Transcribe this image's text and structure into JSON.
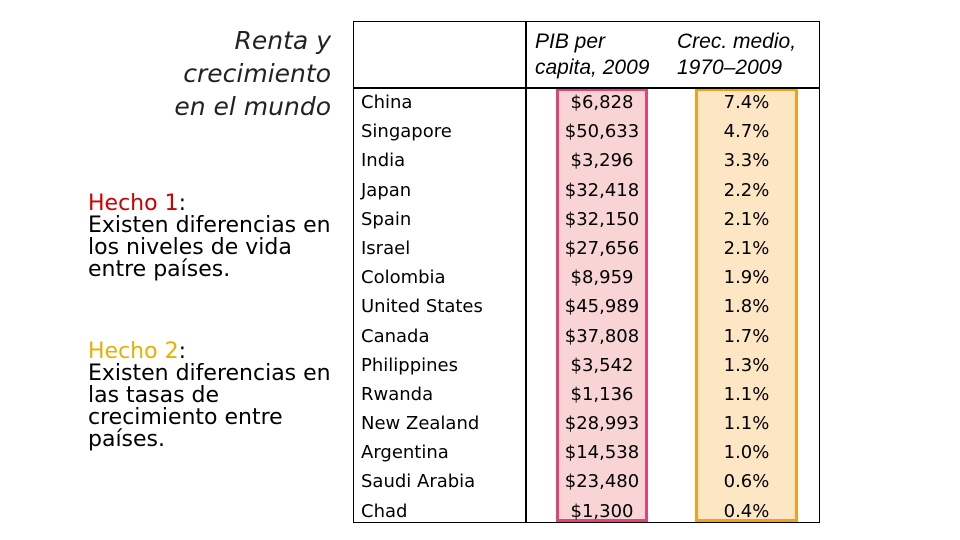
{
  "title": {
    "line1": "Renta y",
    "line2": "crecimiento",
    "line3": "en el mundo"
  },
  "fact1": {
    "label": "Hecho 1",
    "colon": ":",
    "text": "Existen diferencias en los niveles de vida entre países."
  },
  "fact2": {
    "label": "Hecho 2",
    "colon": ":",
    "text": "Existen diferencias en las tasas de crecimiento entre países."
  },
  "table": {
    "headers": {
      "gdp_line1": "PIB per",
      "gdp_line2": "capita, 2009",
      "growth_line1": "Crec. medio,",
      "growth_line2": "1970–2009"
    },
    "rows": [
      {
        "country": "China",
        "gdp": "$6,828",
        "growth": "7.4%"
      },
      {
        "country": "Singapore",
        "gdp": "$50,633",
        "growth": "4.7%"
      },
      {
        "country": "India",
        "gdp": "$3,296",
        "growth": "3.3%"
      },
      {
        "country": "Japan",
        "gdp": "$32,418",
        "growth": "2.2%"
      },
      {
        "country": "Spain",
        "gdp": "$32,150",
        "growth": "2.1%"
      },
      {
        "country": "Israel",
        "gdp": "$27,656",
        "growth": "2.1%"
      },
      {
        "country": "Colombia",
        "gdp": "$8,959",
        "growth": "1.9%"
      },
      {
        "country": "United States",
        "gdp": "$45,989",
        "growth": "1.8%"
      },
      {
        "country": "Canada",
        "gdp": "$37,808",
        "growth": "1.7%"
      },
      {
        "country": "Philippines",
        "gdp": "$3,542",
        "growth": "1.3%"
      },
      {
        "country": "Rwanda",
        "gdp": "$1,136",
        "growth": "1.1%"
      },
      {
        "country": "New Zealand",
        "gdp": "$28,993",
        "growth": "1.1%"
      },
      {
        "country": "Argentina",
        "gdp": "$14,538",
        "growth": "1.0%"
      },
      {
        "country": "Saudi Arabia",
        "gdp": "$23,480",
        "growth": "0.6%"
      },
      {
        "country": "Chad",
        "gdp": "$1,300",
        "growth": "0.4%"
      }
    ]
  },
  "colors": {
    "fact1_label": "#d00000",
    "fact2_label": "#e8b000",
    "gdp_highlight_fill": "#f8d4d4",
    "gdp_highlight_border": "#e0457a",
    "growth_highlight_fill": "#fde6c4",
    "growth_highlight_border": "#f0a020"
  }
}
